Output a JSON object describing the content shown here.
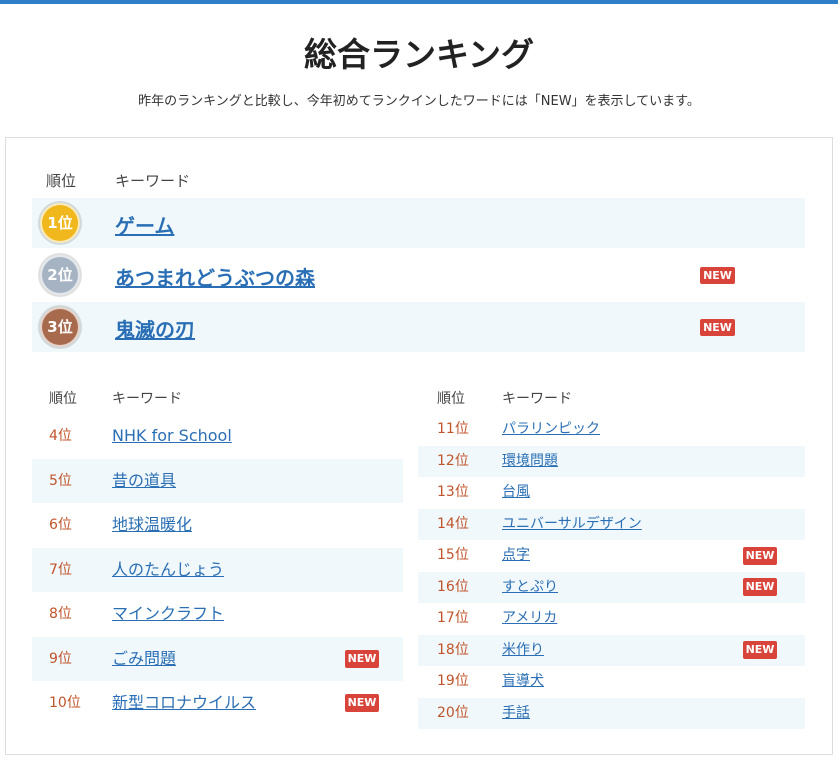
{
  "header": {
    "title": "総合ランキング",
    "subtitle": "昨年のランキングと比較し、今年初めてランクインしたワードには「NEW」を表示しています。"
  },
  "top": {
    "columns": [
      "順位",
      "キーワード"
    ],
    "rows": [
      {
        "rank": "1位",
        "keyword": "ゲーム"
      },
      {
        "rank": "2位",
        "keyword": "あつまれどうぶつの森",
        "badge": "NEW"
      },
      {
        "rank": "3位",
        "keyword": "鬼滅の刃",
        "badge": "NEW"
      }
    ]
  },
  "left": {
    "columns": [
      "順位",
      "キーワード"
    ],
    "rows": [
      {
        "rank": "4位",
        "keyword": "NHK for School"
      },
      {
        "rank": "5位",
        "keyword": "昔の道具"
      },
      {
        "rank": "6位",
        "keyword": "地球温暖化"
      },
      {
        "rank": "7位",
        "keyword": "人のたんじょう"
      },
      {
        "rank": "8位",
        "keyword": "マインクラフト"
      },
      {
        "rank": "9位",
        "keyword": "ごみ問題",
        "badge": "NEW"
      },
      {
        "rank": "10位",
        "keyword": "新型コロナウイルス",
        "badge": "NEW"
      }
    ]
  },
  "right": {
    "columns": [
      "順位",
      "キーワード"
    ],
    "rows": [
      {
        "rank": "11位",
        "keyword": "パラリンピック"
      },
      {
        "rank": "12位",
        "keyword": "環境問題"
      },
      {
        "rank": "13位",
        "keyword": "台風"
      },
      {
        "rank": "14位",
        "keyword": "ユニバーサルデザイン"
      },
      {
        "rank": "15位",
        "keyword": "点字",
        "badge": "NEW"
      },
      {
        "rank": "16位",
        "keyword": "すとぷり",
        "badge": "NEW"
      },
      {
        "rank": "17位",
        "keyword": "アメリカ"
      },
      {
        "rank": "18位",
        "keyword": "米作り",
        "badge": "NEW"
      },
      {
        "rank": "19位",
        "keyword": "盲導犬"
      },
      {
        "rank": "20位",
        "keyword": "手話"
      }
    ]
  }
}
